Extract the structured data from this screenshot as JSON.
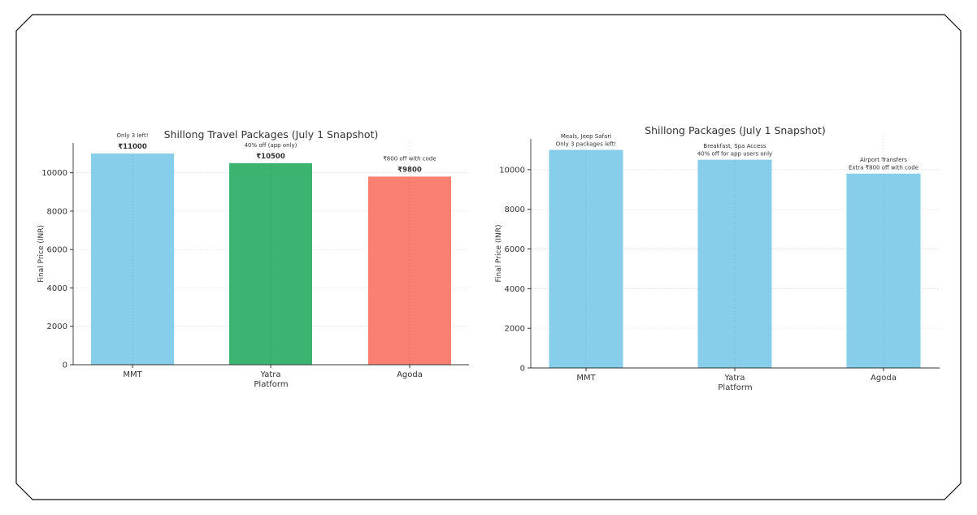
{
  "chart_data": [
    {
      "type": "bar",
      "title": "Shillong Travel Packages (July 1 Snapshot)",
      "xlabel": "Platform",
      "ylabel": "Final Price (INR)",
      "categories": [
        "MMT",
        "Yatra",
        "Agoda"
      ],
      "values": [
        11000,
        10500,
        9800
      ],
      "value_labels": [
        "₹11000",
        "₹10500",
        "₹9800"
      ],
      "annotations": [
        [
          "Only 3 left!"
        ],
        [
          "40% off (app only)"
        ],
        [
          "₹800 off with code"
        ]
      ],
      "colors": [
        "#87CEEB",
        "#3CB371",
        "#FA8072"
      ],
      "ylim": [
        0,
        11550
      ],
      "yticks": [
        0,
        2000,
        4000,
        6000,
        8000,
        10000
      ],
      "grid": true
    },
    {
      "type": "bar",
      "title": "Shillong Packages (July 1 Snapshot)",
      "xlabel": "Platform",
      "ylabel": "Final Price (INR)",
      "categories": [
        "MMT",
        "Yatra",
        "Agoda"
      ],
      "values": [
        11000,
        10500,
        9800
      ],
      "annotations": [
        [
          "Meals, Jeep Safari",
          "Only 3 packages left!"
        ],
        [
          "Breakfast, Spa Access",
          "40% off for app users only"
        ],
        [
          "Airport Transfers",
          "Extra ₹800 off with code"
        ]
      ],
      "colors": [
        "#87CEEB",
        "#87CEEB",
        "#87CEEB"
      ],
      "ylim": [
        0,
        11550
      ],
      "yticks": [
        0,
        2000,
        4000,
        6000,
        8000,
        10000
      ],
      "grid": true
    }
  ]
}
